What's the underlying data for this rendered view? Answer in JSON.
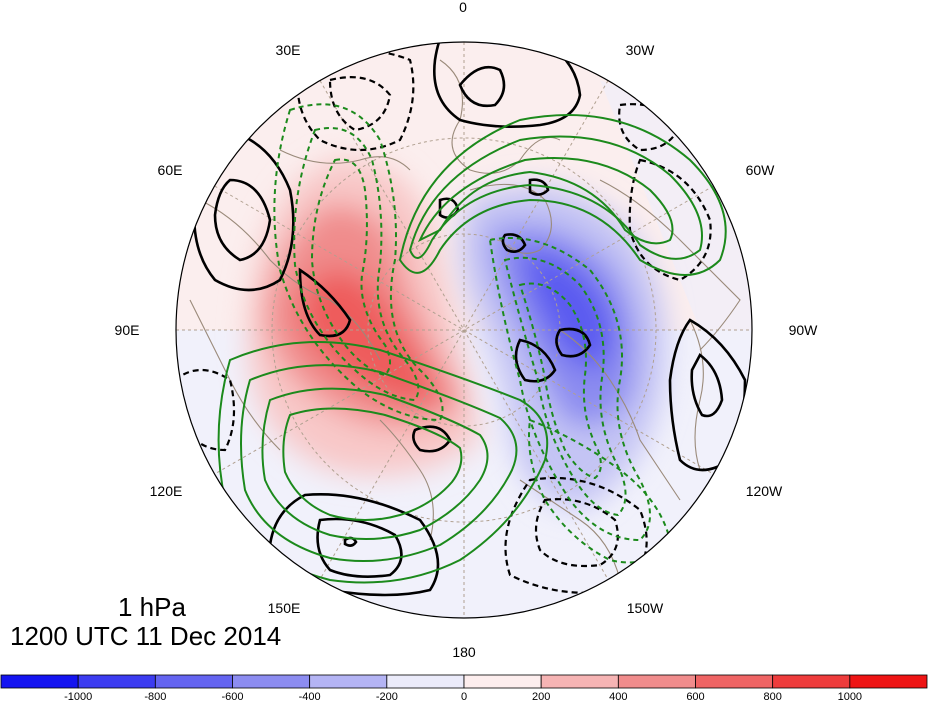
{
  "level": "1 hPa",
  "valid_time": "1200 UTC 11 Dec 2014",
  "projection": "north-polar-stereographic",
  "longitude_labels": [
    {
      "lon": 0,
      "text": "0"
    },
    {
      "lon": -30,
      "text": "30W"
    },
    {
      "lon": -60,
      "text": "60W"
    },
    {
      "lon": -90,
      "text": "90W"
    },
    {
      "lon": -120,
      "text": "120W"
    },
    {
      "lon": -150,
      "text": "150W"
    },
    {
      "lon": 180,
      "text": "180"
    },
    {
      "lon": 150,
      "text": "150E"
    },
    {
      "lon": 120,
      "text": "120E"
    },
    {
      "lon": 90,
      "text": "90E"
    },
    {
      "lon": 60,
      "text": "60E"
    },
    {
      "lon": 30,
      "text": "30E"
    }
  ],
  "colorbar": {
    "ticks": [
      "-1000",
      "-800",
      "-600",
      "-400",
      "-200",
      "0",
      "200",
      "400",
      "600",
      "800",
      "1000"
    ],
    "colors": [
      "#1414f0",
      "#3c3cf0",
      "#6464f0",
      "#8c8cf0",
      "#b4b4f4",
      "#ebebfa",
      "#fdeeee",
      "#f6b4b4",
      "#f08c8c",
      "#ef6464",
      "#ee3c3c",
      "#ee1414"
    ]
  },
  "colors": {
    "positive_contour": "#000000",
    "negative_contour": "#000000",
    "green_contour": "#1c8a1c",
    "coastline": "#9a8a7a",
    "graticule": "#b0a090"
  }
}
